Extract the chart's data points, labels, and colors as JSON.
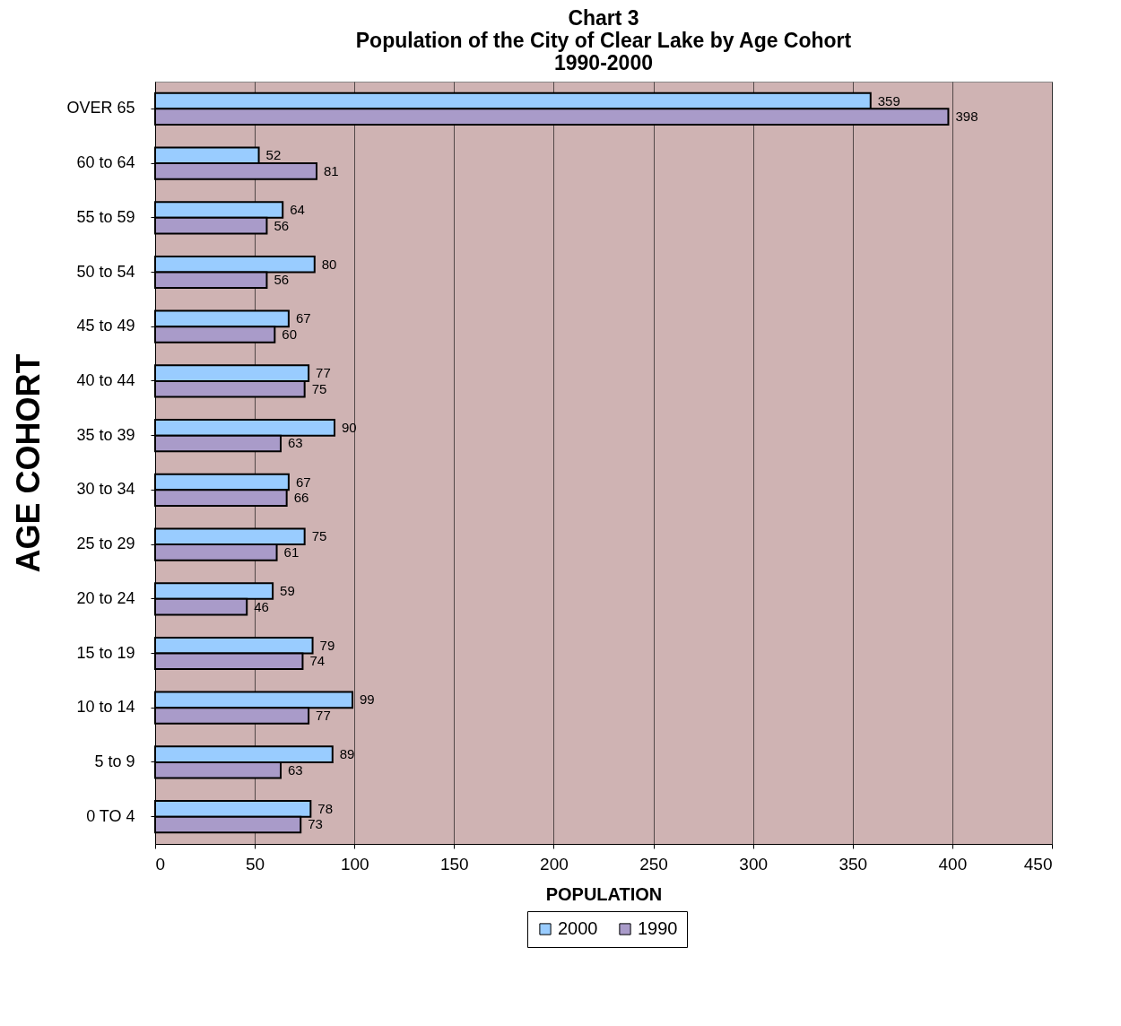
{
  "chart_data": {
    "type": "bar",
    "orientation": "horizontal",
    "title": "Chart 3\nPopulation of the City of Clear Lake by Age Cohort\n1990-2000",
    "xlabel": "POPULATION",
    "ylabel": "AGE COHORT",
    "categories": [
      "OVER 65",
      "60 to 64",
      "55 to 59",
      "50 to 54",
      "45 to 49",
      "40 to 44",
      "35 to 39",
      "30 to 34",
      "25 to 29",
      "20 to 24",
      "15 to 19",
      "10 to 14",
      "5 to 9",
      "0 TO 4"
    ],
    "series": [
      {
        "name": "2000",
        "color": "#99ccff",
        "values": [
          359,
          52,
          64,
          80,
          67,
          77,
          90,
          67,
          75,
          59,
          79,
          99,
          89,
          78
        ]
      },
      {
        "name": "1990",
        "color": "#a99bc9",
        "values": [
          398,
          81,
          56,
          56,
          60,
          75,
          63,
          66,
          61,
          46,
          74,
          77,
          63,
          73
        ]
      }
    ],
    "xlim": [
      0,
      450
    ],
    "xticks": [
      0,
      50,
      100,
      150,
      200,
      250,
      300,
      350,
      400,
      450
    ],
    "grid": "x",
    "legend": "bottom",
    "data_labels": true
  }
}
